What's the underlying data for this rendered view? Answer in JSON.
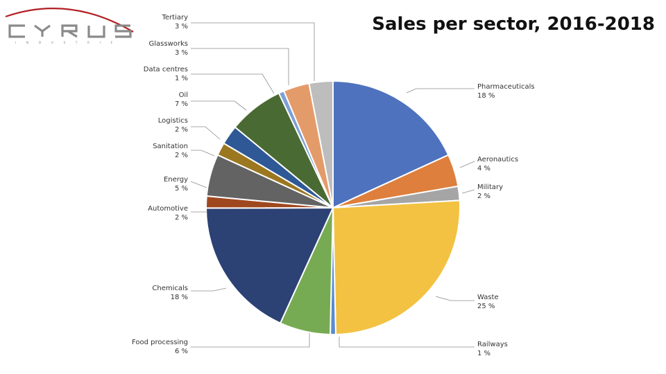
{
  "title": "Sales per sector, 2016-2018",
  "logo": {
    "text": "CYRUS",
    "subtext": "INDUSTRIE",
    "arc_color": "#b01e23"
  },
  "chart_data": {
    "type": "pie",
    "title": "Sales per sector, 2016-2018",
    "unit": "%",
    "slices": [
      {
        "name": "Pharmaceuticals",
        "value": 18,
        "label": "18 %",
        "color": "#4e72be"
      },
      {
        "name": "Aeronautics",
        "value": 4,
        "label": "4 %",
        "color": "#de7f3d"
      },
      {
        "name": "Military",
        "value": 2,
        "label": "2 %",
        "color": "#a5a5a5"
      },
      {
        "name": "Waste",
        "value": 25,
        "label": "25 %",
        "color": "#f3c242"
      },
      {
        "name": "Railways",
        "value": 1,
        "label": "1 %",
        "color": "#5b8ad0"
      },
      {
        "name": "Food processing",
        "value": 6,
        "label": "6 %",
        "color": "#77ab53"
      },
      {
        "name": "Chemicals",
        "value": 18,
        "label": "18 %",
        "color": "#2c4174"
      },
      {
        "name": "Automotive",
        "value": 2,
        "label": "2 %",
        "color": "#9f4820"
      },
      {
        "name": "Energy",
        "value": 5,
        "label": "5 %",
        "color": "#636363"
      },
      {
        "name": "Sanitation",
        "value": 2,
        "label": "2 %",
        "color": "#9b7720"
      },
      {
        "name": "Logistics",
        "value": 2,
        "label": "2 %",
        "color": "#2f5996"
      },
      {
        "name": "Oil",
        "value": 7,
        "label": "7 %",
        "color": "#4a6a33"
      },
      {
        "name": "Data centres",
        "value": 1,
        "label": "1 %",
        "color": "#7e9fd6"
      },
      {
        "name": "Glassworks",
        "value": 3,
        "label": "3 %",
        "color": "#e49b6a"
      },
      {
        "name": "Tertiary",
        "value": 3,
        "label": "3 %",
        "color": "#bdbdbd"
      }
    ]
  }
}
